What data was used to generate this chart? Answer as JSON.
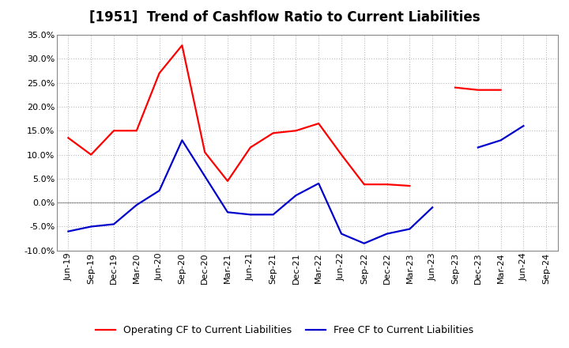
{
  "title": "[1951]  Trend of Cashflow Ratio to Current Liabilities",
  "x_labels": [
    "Jun-19",
    "Sep-19",
    "Dec-19",
    "Mar-20",
    "Jun-20",
    "Sep-20",
    "Dec-20",
    "Mar-21",
    "Jun-21",
    "Sep-21",
    "Dec-21",
    "Mar-22",
    "Jun-22",
    "Sep-22",
    "Dec-22",
    "Mar-23",
    "Jun-23",
    "Sep-23",
    "Dec-23",
    "Mar-24",
    "Jun-24",
    "Sep-24"
  ],
  "operating_cf": [
    13.5,
    10.0,
    15.0,
    15.0,
    27.0,
    32.8,
    10.5,
    4.5,
    11.5,
    14.5,
    15.0,
    16.5,
    10.0,
    3.8,
    3.8,
    3.5,
    null,
    24.0,
    23.5,
    23.5,
    null,
    null
  ],
  "free_cf": [
    -6.0,
    -5.0,
    -4.5,
    -0.5,
    2.5,
    13.0,
    5.5,
    -2.0,
    -2.5,
    -2.5,
    1.5,
    4.0,
    -6.5,
    -8.5,
    -6.5,
    -5.5,
    -1.0,
    null,
    11.5,
    13.0,
    16.0,
    null
  ],
  "ylim": [
    -10.0,
    35.0
  ],
  "yticks": [
    -10.0,
    -5.0,
    0.0,
    5.0,
    10.0,
    15.0,
    20.0,
    25.0,
    30.0,
    35.0
  ],
  "operating_color": "#ff0000",
  "free_color": "#0000cc",
  "background_color": "#ffffff",
  "grid_color": "#bbbbbb",
  "legend_operating": "Operating CF to Current Liabilities",
  "legend_free": "Free CF to Current Liabilities",
  "title_fontsize": 12,
  "axis_fontsize": 8,
  "legend_fontsize": 9
}
